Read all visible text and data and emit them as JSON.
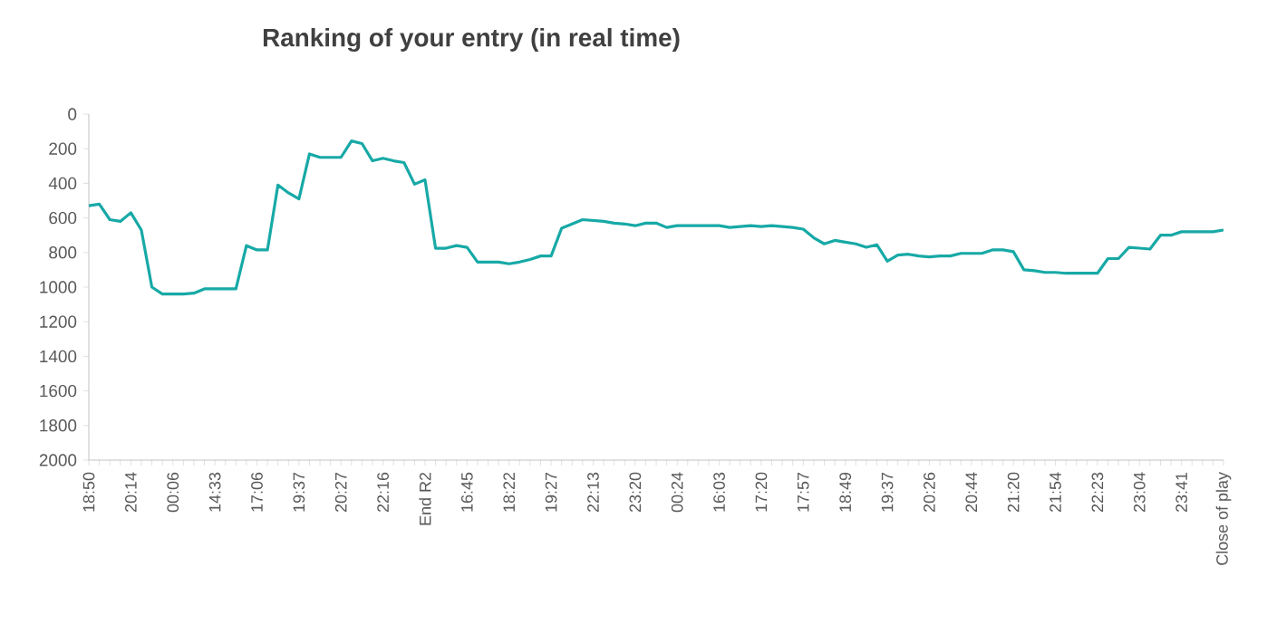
{
  "chart_data": {
    "type": "line",
    "title": "Ranking of your entry (in real time)",
    "categories": [
      "18:50",
      null,
      null,
      null,
      "20:14",
      null,
      null,
      null,
      "00:06",
      null,
      null,
      null,
      "14:33",
      null,
      null,
      null,
      "17:06",
      null,
      null,
      null,
      "19:37",
      null,
      null,
      null,
      "20:27",
      null,
      null,
      null,
      "22:16",
      null,
      null,
      null,
      "End R2",
      null,
      null,
      null,
      "16:45",
      null,
      null,
      null,
      "18:22",
      null,
      null,
      null,
      "19:27",
      null,
      null,
      null,
      "22:13",
      null,
      null,
      null,
      "23:20",
      null,
      null,
      null,
      "00:24",
      null,
      null,
      null,
      "16:03",
      null,
      null,
      null,
      "17:20",
      null,
      null,
      null,
      "17:57",
      null,
      null,
      null,
      "18:49",
      null,
      null,
      null,
      "19:37",
      null,
      null,
      null,
      "20:26",
      null,
      null,
      null,
      "20:44",
      null,
      null,
      null,
      "21:20",
      null,
      null,
      null,
      "21:54",
      null,
      null,
      null,
      "22:23",
      null,
      null,
      null,
      "23:04",
      null,
      null,
      null,
      "23:41",
      null,
      null,
      null,
      "Close of play"
    ],
    "series": [
      {
        "color": "#17a9a6",
        "values": [
          530,
          520,
          610,
          620,
          570,
          670,
          1000,
          1040,
          1040,
          1040,
          1035,
          1010,
          1010,
          1010,
          1010,
          760,
          785,
          785,
          410,
          455,
          490,
          230,
          250,
          250,
          250,
          155,
          170,
          270,
          255,
          270,
          280,
          405,
          380,
          775,
          775,
          760,
          770,
          855,
          855,
          855,
          865,
          855,
          840,
          820,
          820,
          660,
          635,
          610,
          615,
          620,
          630,
          635,
          645,
          630,
          630,
          655,
          645,
          645,
          645,
          645,
          645,
          655,
          650,
          645,
          650,
          645,
          650,
          655,
          665,
          715,
          750,
          730,
          740,
          750,
          770,
          755,
          850,
          815,
          810,
          820,
          825,
          820,
          820,
          805,
          805,
          805,
          785,
          785,
          795,
          900,
          905,
          915,
          915,
          920,
          920,
          920,
          920,
          835,
          835,
          770,
          775,
          780,
          700,
          700,
          680,
          680,
          680,
          680,
          670
        ]
      }
    ],
    "ylim": [
      2000,
      0
    ],
    "yticks": [
      0,
      200,
      400,
      600,
      800,
      1000,
      1200,
      1400,
      1600,
      1800,
      2000
    ],
    "grid": false,
    "legend": false,
    "marker": "none",
    "line_style": "solid"
  }
}
